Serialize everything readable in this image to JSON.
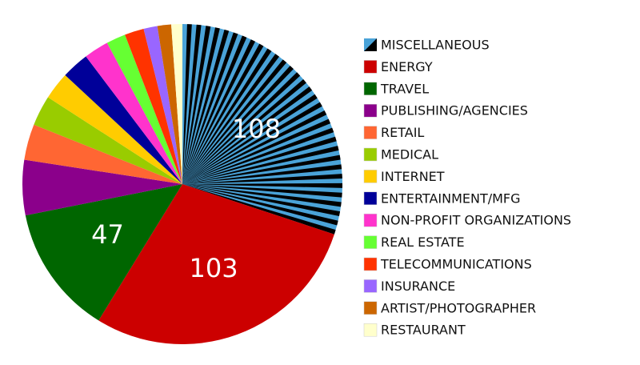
{
  "chart_data": {
    "type": "pie",
    "categories": [
      "MISCELLANEOUS",
      "ENERGY",
      "TRAVEL",
      "PUBLISHING/AGENCIES",
      "RETAIL",
      "MEDICAL",
      "INTERNET",
      "ENTERTAINMENT/MFG",
      "NON-PROFIT ORGANIZATIONS",
      "REAL ESTATE",
      "TELECOMMUNICATIONS",
      "INSURANCE",
      "ARTIST/PHOTOGRAPHER",
      "RESTAURANT"
    ],
    "values": [
      108,
      103,
      47,
      20,
      13,
      11,
      10,
      10,
      9,
      7,
      7,
      5,
      5,
      4
    ],
    "colors": [
      "#4aa3d8",
      "#cc0000",
      "#006600",
      "#8b008b",
      "#ff6633",
      "#99cc00",
      "#ffcc00",
      "#000099",
      "#ff33cc",
      "#66ff33",
      "#ff3300",
      "#9966ff",
      "#cc6600",
      "#ffffcc"
    ],
    "stripe_color": "#000000"
  }
}
